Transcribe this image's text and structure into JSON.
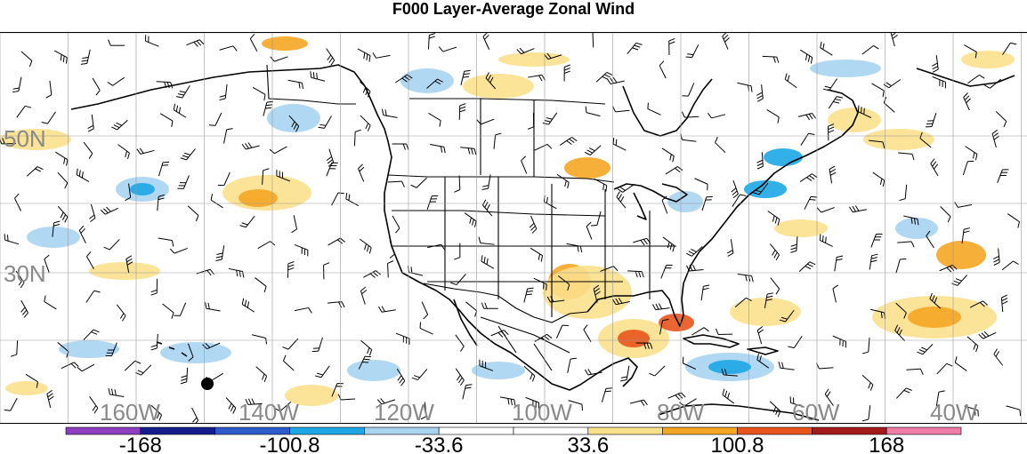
{
  "title": "F000 Layer-Average Zonal Wind",
  "lat_labels": [
    "50N",
    "30N"
  ],
  "lon_labels": [
    "160W",
    "140W",
    "120W",
    "100W",
    "80W",
    "60W",
    "40W"
  ],
  "colorbar": {
    "colors": [
      "#8c3fc0",
      "#151c8c",
      "#2e5ccc",
      "#1ea7e6",
      "#a8d4f2",
      "#ffffff",
      "#ffffff",
      "#fbe08c",
      "#f5a623",
      "#e8541c",
      "#a31a1a",
      "#f07ca8"
    ],
    "labels": [
      "-168",
      "-100.8",
      "-33.6",
      "33.6",
      "100.8",
      "168"
    ]
  },
  "colors": {
    "land_outline": "#000000",
    "grid": "#9a9a9a",
    "label": "#8a8a8a",
    "positive_light": "#fbe08c",
    "positive_mid": "#f5a623",
    "positive_strong": "#e8541c",
    "negative_light": "#a8d4f2",
    "negative_mid": "#1ea7e6"
  }
}
